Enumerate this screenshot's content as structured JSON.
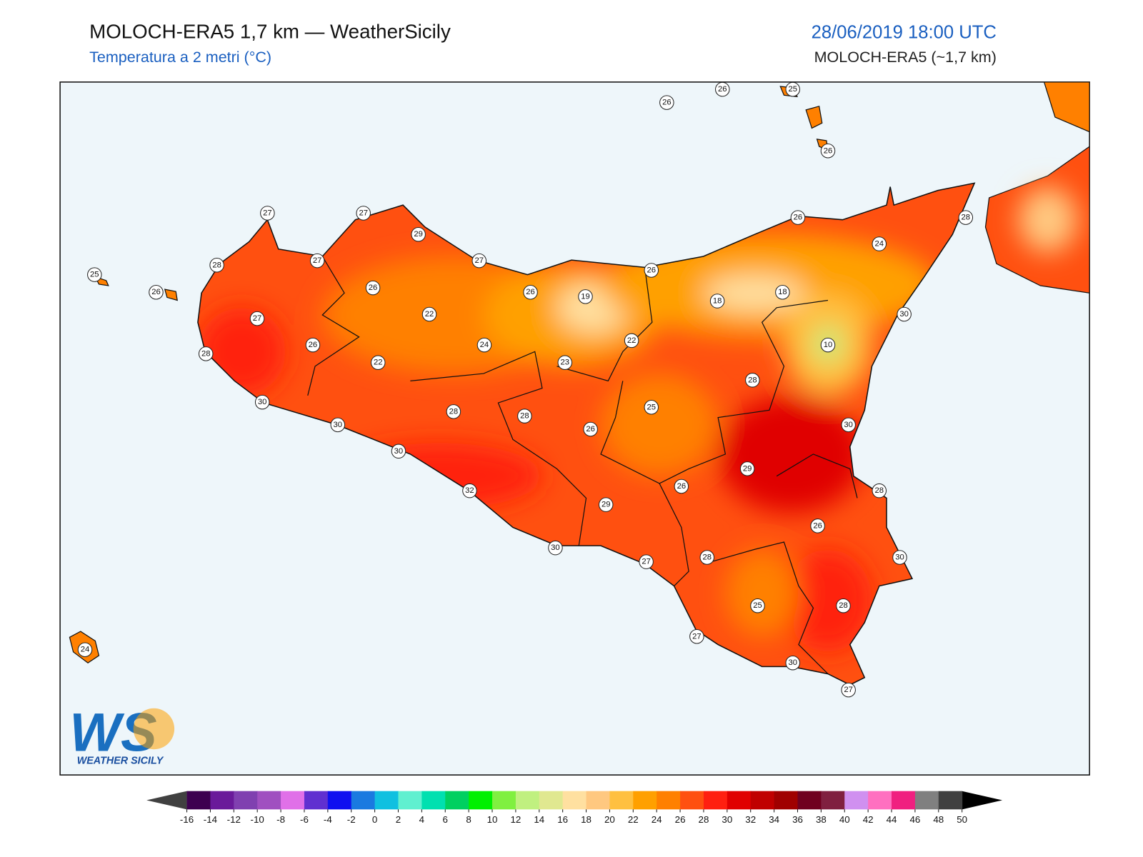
{
  "header": {
    "title": "MOLOCH-ERA5 1,7 km — WeatherSicily",
    "subtitle": "Temperatura a 2 metri (°C)",
    "datetime": "28/06/2019 18:00 UTC",
    "model": "MOLOCH-ERA5 (~1,7 km)"
  },
  "stations": [
    26,
    26,
    25,
    26,
    27,
    27,
    29,
    28,
    27,
    27,
    25,
    26,
    26,
    26,
    19,
    26,
    26,
    24,
    28,
    18,
    18,
    27,
    22,
    22,
    30,
    10,
    26,
    24,
    28,
    22,
    23,
    28,
    30,
    25,
    28,
    28,
    30,
    26,
    30,
    30,
    29,
    26,
    28,
    32,
    29,
    26,
    30,
    27,
    28,
    30,
    25,
    28,
    27,
    24,
    30,
    27
  ],
  "logo": {
    "mark": "WS",
    "name": "WEATHER SICILY"
  },
  "colorbar": {
    "ticks": [
      -16,
      -14,
      -12,
      -10,
      -8,
      -6,
      -4,
      -2,
      0,
      2,
      4,
      6,
      8,
      10,
      12,
      14,
      16,
      18,
      20,
      22,
      24,
      26,
      28,
      30,
      32,
      34,
      36,
      38,
      40,
      42,
      44,
      46,
      48,
      50
    ],
    "colors": [
      "#3d0050",
      "#6a1a9a",
      "#8040b0",
      "#a050c0",
      "#e070e8",
      "#6030d0",
      "#1010f0",
      "#1a7ae0",
      "#10c0e0",
      "#60f0d0",
      "#00e0b0",
      "#00d060",
      "#00f000",
      "#80f040",
      "#c0f080",
      "#e0e890",
      "#ffe0a0",
      "#ffc880",
      "#ffc040",
      "#ffa000",
      "#ff8000",
      "#ff5010",
      "#ff2010",
      "#e00000",
      "#c00000",
      "#a00000",
      "#700020",
      "#802040",
      "#d090f0",
      "#ff70c0",
      "#f02080",
      "#808080",
      "#404040"
    ],
    "under_color": "#404040",
    "over_color": "#000000"
  }
}
